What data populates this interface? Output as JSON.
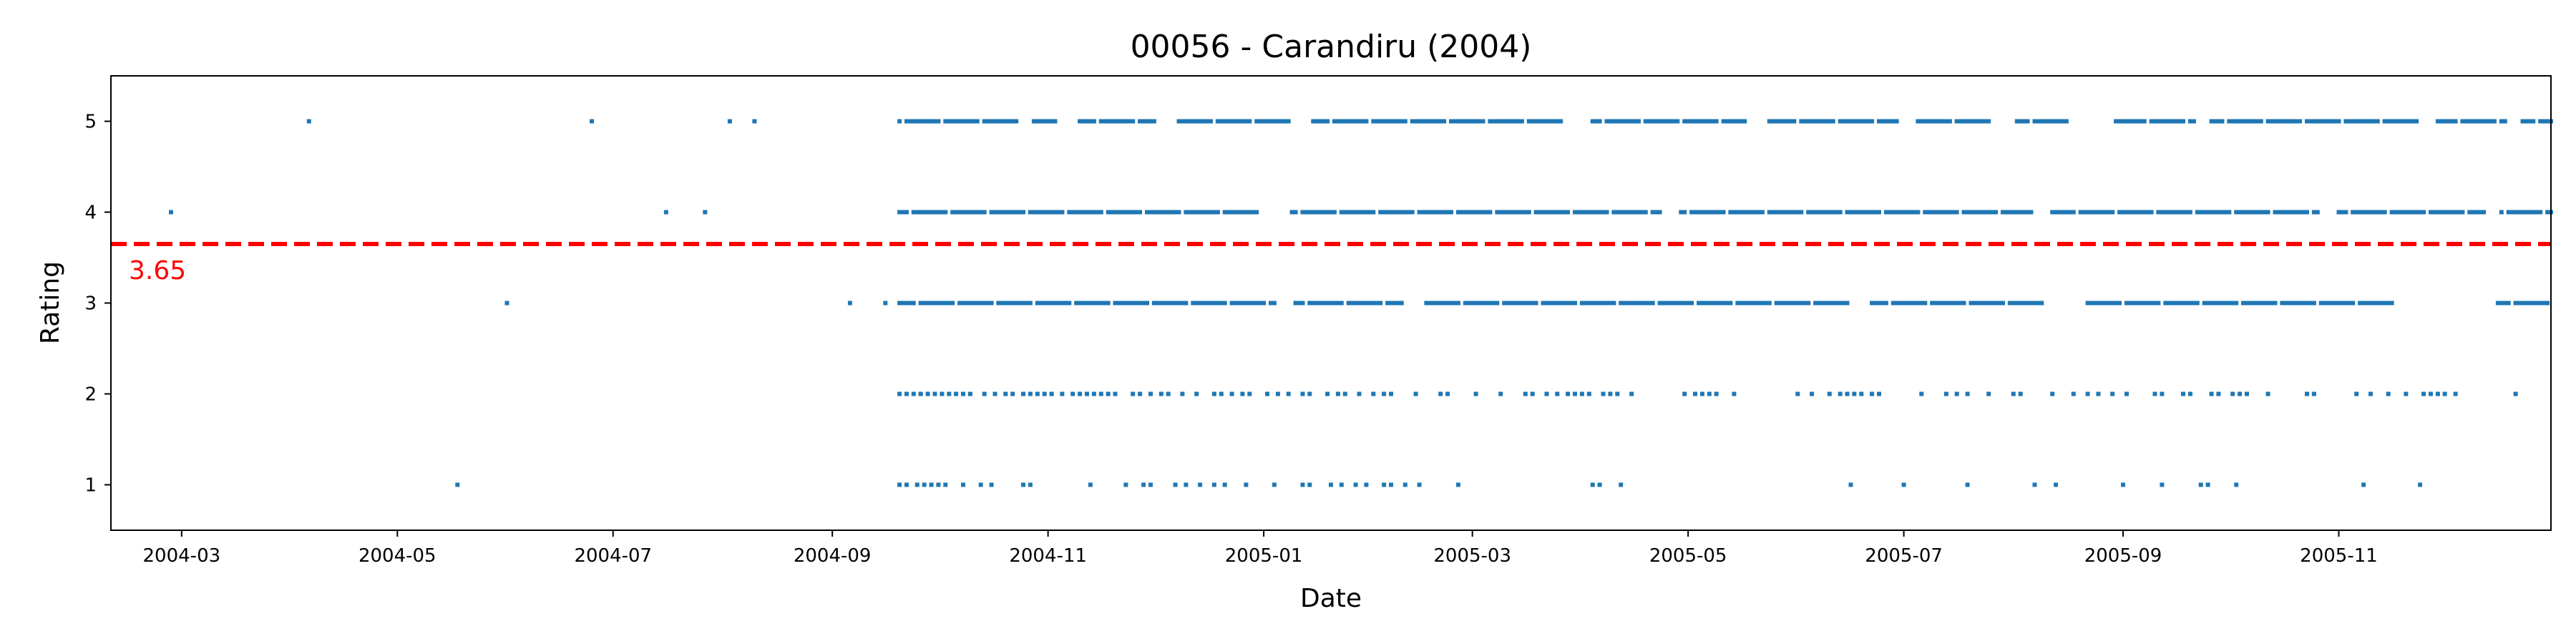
{
  "chart_data": {
    "type": "scatter",
    "title": "00056 - Carandiru (2004)",
    "xlabel": "Date",
    "ylabel": "Rating",
    "x_ticks": [
      "2004-03",
      "2004-05",
      "2004-07",
      "2004-09",
      "2004-11",
      "2005-01",
      "2005-03",
      "2005-05",
      "2005-07",
      "2005-09",
      "2005-11"
    ],
    "y_ticks": [
      "1",
      "2",
      "3",
      "4",
      "5"
    ],
    "xlim": [
      "2004-02-10",
      "2005-12-31"
    ],
    "ylim": [
      0.5,
      5.5
    ],
    "grid": false,
    "marker_color": "#1f77b4",
    "mean": {
      "value": 3.65,
      "label": "3.65",
      "color": "#ff0000",
      "style": "dashed"
    },
    "series": [
      {
        "points": [
          [
            "2004-02-27",
            4
          ],
          [
            "2004-04-06",
            5
          ],
          [
            "2004-05-18",
            1
          ],
          [
            "2004-06-01",
            3
          ],
          [
            "2004-06-25",
            5
          ],
          [
            "2004-07-16",
            4
          ],
          [
            "2004-07-27",
            4
          ],
          [
            "2004-08-03",
            5
          ],
          [
            "2004-08-10",
            5
          ],
          [
            "2004-09-06",
            3
          ],
          [
            "2004-09-16",
            3
          ]
        ]
      }
    ],
    "dense_bands": [
      {
        "y": 5,
        "from": "2004-09-20",
        "to": "2005-12-31",
        "gaps": [
          [
            "2004-10-24",
            "2004-10-27"
          ],
          [
            "2004-11-05",
            "2004-11-09"
          ],
          [
            "2004-12-02",
            "2004-12-07"
          ],
          [
            "2005-01-10",
            "2005-01-14"
          ],
          [
            "2005-03-28",
            "2005-04-03"
          ],
          [
            "2005-05-18",
            "2005-05-23"
          ],
          [
            "2005-06-30",
            "2005-07-04"
          ],
          [
            "2005-07-27",
            "2005-08-01"
          ],
          [
            "2005-08-17",
            "2005-08-29"
          ],
          [
            "2005-09-22",
            "2005-09-25"
          ],
          [
            "2005-11-24",
            "2005-11-28"
          ],
          [
            "2005-12-19",
            "2005-12-22"
          ]
        ]
      },
      {
        "y": 4,
        "from": "2004-09-20",
        "to": "2005-12-31",
        "gaps": [
          [
            "2004-12-31",
            "2005-01-08"
          ],
          [
            "2005-04-24",
            "2005-04-28"
          ],
          [
            "2005-08-07",
            "2005-08-11"
          ],
          [
            "2005-10-27",
            "2005-10-31"
          ],
          [
            "2005-12-13",
            "2005-12-16"
          ]
        ]
      },
      {
        "y": 3,
        "from": "2004-09-20",
        "to": "2005-12-31",
        "gaps": [
          [
            "2005-01-05",
            "2005-01-09"
          ],
          [
            "2005-02-10",
            "2005-02-15"
          ],
          [
            "2005-06-17",
            "2005-06-21"
          ],
          [
            "2005-08-10",
            "2005-08-20"
          ],
          [
            "2005-11-17",
            "2005-12-15"
          ]
        ]
      }
    ],
    "sparse_points": {
      "2": [
        "2004-09-20",
        "2004-09-22",
        "2004-09-24",
        "2004-09-26",
        "2004-09-28",
        "2004-09-30",
        "2004-10-02",
        "2004-10-04",
        "2004-10-06",
        "2004-10-08",
        "2004-10-10",
        "2004-10-14",
        "2004-10-17",
        "2004-10-20",
        "2004-10-22",
        "2004-10-25",
        "2004-10-27",
        "2004-10-29",
        "2004-10-31",
        "2004-11-02",
        "2004-11-05",
        "2004-11-08",
        "2004-11-10",
        "2004-11-12",
        "2004-11-14",
        "2004-11-16",
        "2004-11-18",
        "2004-11-20",
        "2004-11-25",
        "2004-11-27",
        "2004-11-30",
        "2004-12-03",
        "2004-12-05",
        "2004-12-09",
        "2004-12-13",
        "2004-12-18",
        "2004-12-20",
        "2004-12-23",
        "2004-12-26",
        "2004-12-28",
        "2005-01-02",
        "2005-01-05",
        "2005-01-08",
        "2005-01-12",
        "2005-01-14",
        "2005-01-19",
        "2005-01-22",
        "2005-01-24",
        "2005-01-28",
        "2005-02-01",
        "2005-02-04",
        "2005-02-06",
        "2005-02-13",
        "2005-02-20",
        "2005-02-22",
        "2005-03-02",
        "2005-03-09",
        "2005-03-16",
        "2005-03-18",
        "2005-03-22",
        "2005-03-25",
        "2005-03-28",
        "2005-03-30",
        "2005-04-01",
        "2005-04-03",
        "2005-04-07",
        "2005-04-09",
        "2005-04-11",
        "2005-04-15",
        "2005-04-30",
        "2005-05-03",
        "2005-05-05",
        "2005-05-07",
        "2005-05-09",
        "2005-05-14",
        "2005-06-01",
        "2005-06-05",
        "2005-06-10",
        "2005-06-13",
        "2005-06-15",
        "2005-06-17",
        "2005-06-19",
        "2005-06-22",
        "2005-06-24",
        "2005-07-06",
        "2005-07-13",
        "2005-07-16",
        "2005-07-19",
        "2005-07-25",
        "2005-08-01",
        "2005-08-03",
        "2005-08-12",
        "2005-08-18",
        "2005-08-22",
        "2005-08-25",
        "2005-08-29",
        "2005-09-02",
        "2005-09-10",
        "2005-09-12",
        "2005-09-18",
        "2005-09-20",
        "2005-09-26",
        "2005-09-28",
        "2005-10-02",
        "2005-10-04",
        "2005-10-06",
        "2005-10-12",
        "2005-10-23",
        "2005-10-25",
        "2005-11-06",
        "2005-11-10",
        "2005-11-15",
        "2005-11-20",
        "2005-11-25",
        "2005-11-27",
        "2005-11-29",
        "2005-12-01",
        "2005-12-04",
        "2005-12-21"
      ],
      "1": [
        "2004-09-20",
        "2004-09-22",
        "2004-09-25",
        "2004-09-27",
        "2004-09-29",
        "2004-10-01",
        "2004-10-03",
        "2004-10-08",
        "2004-10-13",
        "2004-10-16",
        "2004-10-25",
        "2004-10-27",
        "2004-11-13",
        "2004-11-23",
        "2004-11-28",
        "2004-11-30",
        "2004-12-07",
        "2004-12-10",
        "2004-12-14",
        "2004-12-18",
        "2004-12-21",
        "2004-12-27",
        "2005-01-04",
        "2005-01-12",
        "2005-01-14",
        "2005-01-20",
        "2005-01-23",
        "2005-01-27",
        "2005-01-30",
        "2005-02-04",
        "2005-02-06",
        "2005-02-10",
        "2005-02-14",
        "2005-02-25",
        "2005-04-04",
        "2005-04-06",
        "2005-04-12",
        "2005-06-16",
        "2005-07-01",
        "2005-07-19",
        "2005-08-07",
        "2005-08-13",
        "2005-09-01",
        "2005-09-12",
        "2005-09-23",
        "2005-09-25",
        "2005-10-03",
        "2005-11-08",
        "2005-11-24"
      ]
    }
  }
}
